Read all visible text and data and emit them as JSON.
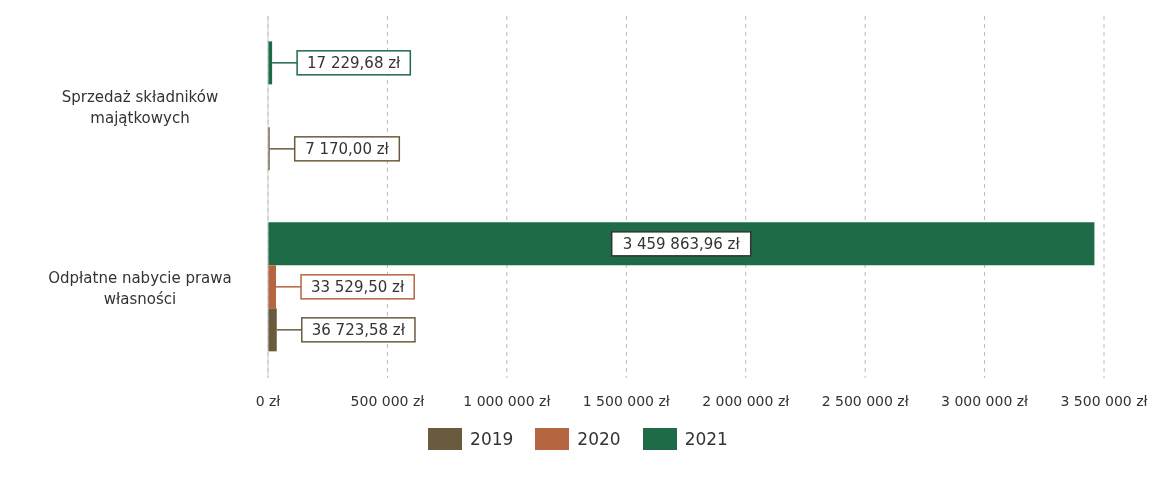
{
  "chart_data": {
    "type": "bar",
    "orientation": "horizontal",
    "categories": [
      "Sprzedaż składników majątkowych",
      "Odpłatne nabycie prawa własności"
    ],
    "series": [
      {
        "name": "2019",
        "color": "#6b5b3e",
        "values": [
          7170.0,
          36723.58
        ],
        "value_labels": [
          "7 170,00 zł",
          "36 723,58 zł"
        ]
      },
      {
        "name": "2020",
        "color": "#b5653f",
        "values": [
          null,
          33529.5
        ],
        "value_labels": [
          null,
          "33 529,50 zł"
        ]
      },
      {
        "name": "2021",
        "color": "#1d6b47",
        "values": [
          17229.68,
          3459863.96
        ],
        "value_labels": [
          "17 229,68 zł",
          "3 459 863,96 zł"
        ]
      }
    ],
    "xlim": [
      0,
      3500000
    ],
    "xticks": [
      {
        "value": 0,
        "label": "0 zł"
      },
      {
        "value": 500000,
        "label": "500 000 zł"
      },
      {
        "value": 1000000,
        "label": "1 000 000 zł"
      },
      {
        "value": 1500000,
        "label": "1 500 000 zł"
      },
      {
        "value": 2000000,
        "label": "2 000 000 zł"
      },
      {
        "value": 2500000,
        "label": "2 500 000 zł"
      },
      {
        "value": 3000000,
        "label": "3 000 000 zł"
      },
      {
        "value": 3500000,
        "label": "3 500 000 zł"
      }
    ],
    "grid": "x",
    "legend": "bottom"
  }
}
